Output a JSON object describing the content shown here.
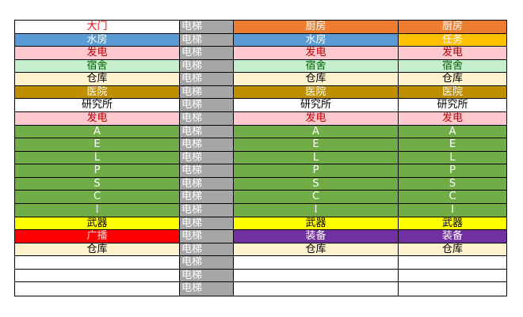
{
  "table": {
    "rows": [
      [
        "大门",
        "电梯",
        "厨房",
        "厨房"
      ],
      [
        "水房",
        "电梯",
        "水房",
        "任务"
      ],
      [
        "发电",
        "电梯",
        "发电",
        "发电"
      ],
      [
        "宿舍",
        "电梯",
        "宿舍",
        "宿舍"
      ],
      [
        "仓库",
        "电梯",
        "仓库",
        "仓库"
      ],
      [
        "医院",
        "电梯",
        "医院",
        "医院"
      ],
      [
        "研究所",
        "电梯",
        "研究所",
        "研究所"
      ],
      [
        "发电",
        "电梯",
        "发电",
        "发电"
      ],
      [
        "A",
        "电梯",
        "A",
        "A"
      ],
      [
        "E",
        "电梯",
        "E",
        "E"
      ],
      [
        "L",
        "电梯",
        "L",
        "L"
      ],
      [
        "P",
        "电梯",
        "P",
        "P"
      ],
      [
        "S",
        "电梯",
        "S",
        "S"
      ],
      [
        "C",
        "电梯",
        "C",
        "C"
      ],
      [
        "I",
        "电梯",
        "I",
        "I"
      ],
      [
        "武器",
        "电梯",
        "武器",
        "武器"
      ],
      [
        "广播",
        "电梯",
        "装备",
        "装备"
      ],
      [
        "仓库",
        "电梯",
        "仓库",
        "仓库"
      ],
      [
        null,
        "电梯",
        null,
        null
      ],
      [
        null,
        "电梯",
        null,
        null
      ],
      [
        null,
        "电梯",
        null,
        null
      ]
    ]
  }
}
